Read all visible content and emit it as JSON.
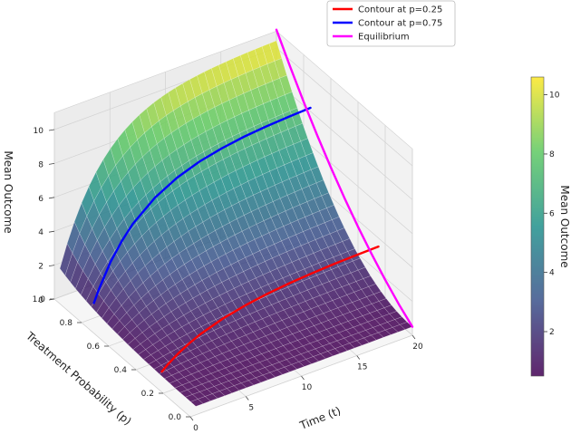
{
  "chart_data": {
    "type": "surface3d",
    "title": "",
    "xlabel": "Time (t)",
    "ylabel": "Treatment Probability (p)",
    "zlabel": "Mean Outcome",
    "xlim": [
      0,
      20
    ],
    "ylim": [
      0,
      1
    ],
    "zlim": [
      0,
      11
    ],
    "x_ticks": [
      0,
      5,
      10,
      15,
      20
    ],
    "y_ticks": [
      0.0,
      0.2,
      0.4,
      0.6,
      0.8,
      1.0
    ],
    "z_ticks": [
      0,
      2,
      4,
      6,
      8,
      10
    ],
    "x_tick_labels": [
      "0",
      "5",
      "10",
      "15",
      "20"
    ],
    "y_tick_labels": [
      "0.0",
      "0.2",
      "0.4",
      "0.6",
      "0.8",
      "1.0"
    ],
    "z_tick_labels": [
      "0",
      "2",
      "4",
      "6",
      "8",
      "10"
    ],
    "surface": {
      "description": "mean outcome as a function of time t and treatment probability p",
      "formula_params": {
        "base": 0.5,
        "gain": 10.0,
        "rate_divisor": 4.0
      },
      "t_range": [
        0.5,
        20
      ],
      "p_range": [
        0,
        1
      ],
      "colormap": "viridis",
      "alpha": 0.85
    },
    "series": [
      {
        "name": "Contour at p=0.25",
        "color": "#ff0000",
        "p": 0.25,
        "t": [
          0.5,
          1,
          2,
          3,
          4,
          6,
          8,
          10,
          12,
          14,
          16,
          18,
          20
        ],
        "values": [
          0.81,
          1.09,
          1.54,
          1.9,
          2.19,
          2.62,
          2.91,
          3.12,
          3.26,
          3.36,
          3.43,
          3.47,
          3.5
        ]
      },
      {
        "name": "Contour at p=0.75",
        "color": "#0000ff",
        "p": 0.75,
        "t": [
          0.5,
          1,
          2,
          3,
          4,
          6,
          8,
          10,
          12,
          14,
          16,
          18,
          20
        ],
        "values": [
          1.38,
          2.16,
          3.45,
          4.43,
          5.21,
          6.28,
          6.98,
          7.44,
          7.74,
          7.94,
          8.07,
          8.15,
          8.21
        ]
      },
      {
        "name": "Equilibrium",
        "color": "#ff00ff",
        "t": 20,
        "p": [
          0,
          0.1,
          0.2,
          0.3,
          0.4,
          0.5,
          0.6,
          0.7,
          0.8,
          0.9,
          1.0
        ],
        "values": [
          0.5,
          1.14,
          1.88,
          2.71,
          3.62,
          4.63,
          5.74,
          6.93,
          8.22,
          9.61,
          11.08
        ]
      }
    ],
    "legend": {
      "placement": "top-right"
    },
    "colorbar": {
      "label": "Mean Outcome",
      "colormap": "viridis",
      "ticks": [
        2,
        4,
        6,
        8,
        10
      ],
      "tick_labels": [
        "2",
        "4",
        "6",
        "8",
        "10"
      ],
      "range": [
        0.5,
        10.6
      ]
    },
    "grid": true
  }
}
